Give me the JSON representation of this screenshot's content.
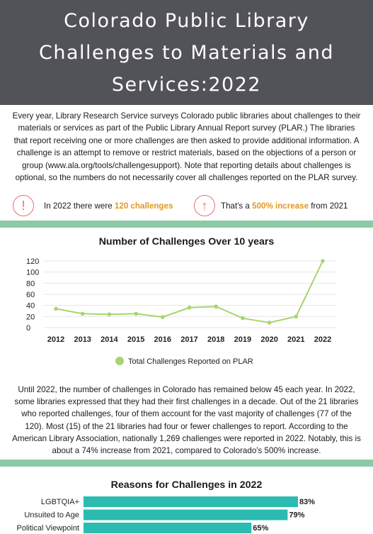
{
  "header": {
    "title_line1": "Colorado Public Library",
    "title_line2": "Challenges to Materials and",
    "title_line3": "Services:2022"
  },
  "intro_text": "Every year, Library Research Service surveys Colorado public libraries about challenges to their materials or services as part of the Public Library Annual Report survey (PLAR.) The libraries that report receiving one or more challenges are then asked to provide additional information. A challenge is an attempt to remove or restrict materials, based on the objections of a person or group (www.ala.org/tools/challengesupport). Note that reporting details about challenges is optional, so the numbers do not necessarily cover all challenges reported on the PLAR survey.",
  "stats": {
    "count_prefix": "In 2022 there were",
    "count_value": "120 challenges",
    "increase_prefix": "That's a",
    "increase_value": "500% increase",
    "increase_suffix": "from 2021",
    "alert_icon": "exclamation-circle-icon",
    "arrow_icon": "arrow-up-circle-icon"
  },
  "body_text": "Until 2022, the number of challenges in Colorado has remained below 45 each year. In 2022, some libraries expressed that they had their first challenges in a decade. Out of the 21 libraries who reported challenges, four of them account for the vast majority of challenges (77 of the 120). Most (15) of the 21 libraries had four or fewer challenges to report. According to the American Library Association, nationally 1,269 challenges were reported in 2022. Notably, this is about a 74% increase from 2021, compared to Colorado's 500% increase.",
  "colors": {
    "header_bg": "#525259",
    "line": "#a8d46f",
    "bar": "#2bbbb0",
    "highlight": "#e3971f",
    "band": "#8cc9a7",
    "icon": "#e8706f"
  },
  "chart_data": [
    {
      "type": "line",
      "title": "Number of Challenges Over 10 years",
      "x": [
        "2012",
        "2013",
        "2014",
        "2015",
        "2016",
        "2017",
        "2018",
        "2019",
        "2020",
        "2021",
        "2022"
      ],
      "y_ticks": [
        "120",
        "100",
        "80",
        "60",
        "40",
        "20",
        "0"
      ],
      "ylim": [
        0,
        120
      ],
      "series": [
        {
          "name": "Total Challenges Reported on PLAR",
          "values": [
            34,
            25,
            24,
            25,
            19,
            36,
            38,
            17,
            9,
            20,
            120
          ]
        }
      ],
      "grid": true,
      "legend": "bottom"
    },
    {
      "type": "bar",
      "orientation": "horizontal",
      "title": "Reasons for Challenges in 2022",
      "categories": [
        "LGBTQIA+",
        "Unsuited to Age",
        "Political Viewpoint"
      ],
      "values": [
        83,
        79,
        65
      ],
      "value_labels": [
        "83%",
        "79%",
        "65%"
      ],
      "xlim": [
        0,
        100
      ]
    }
  ]
}
